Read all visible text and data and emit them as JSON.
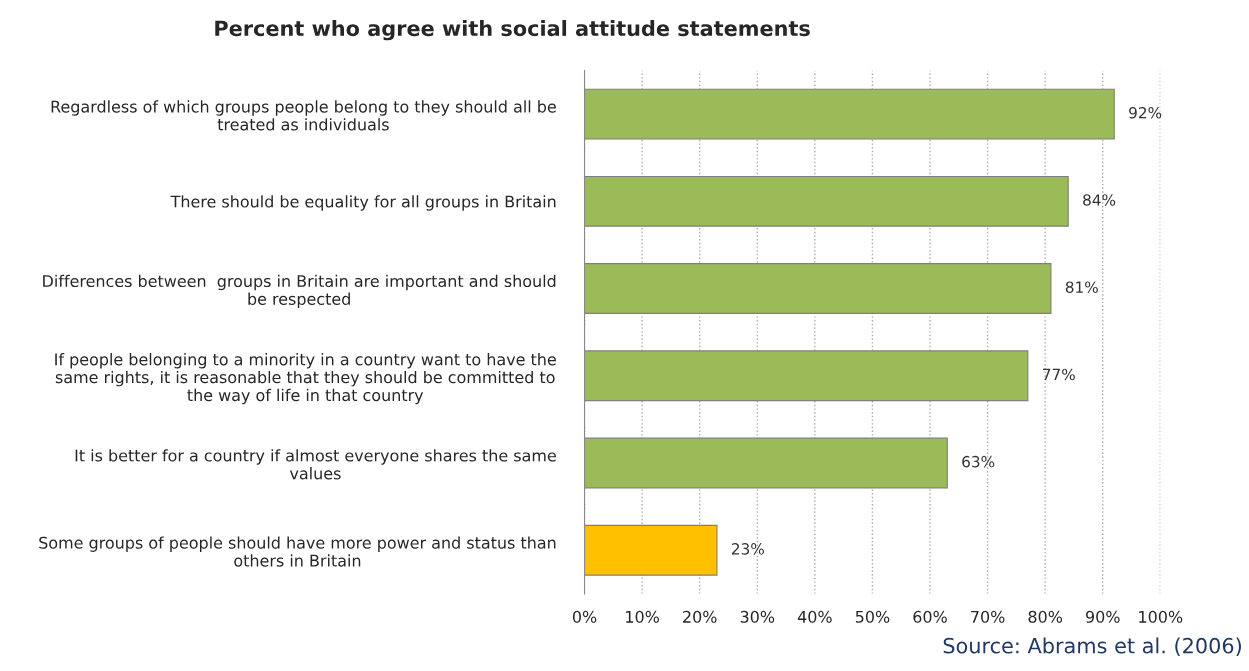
{
  "chart_data": {
    "type": "bar",
    "orientation": "horizontal",
    "title": "Percent who agree with social attitude statements",
    "categories": [
      "Regardless of which groups people belong to they should all be\ntreated as individuals",
      "There should be equality for all groups in Britain",
      "Differences between  groups in Britain are important and should\nbe respected",
      "If people belonging to a minority in a country want to have the\nsame rights, it is reasonable that they should be committed to\nthe way of life in that country",
      "It is better for a country if almost everyone shares the same\nvalues",
      "Some groups of people should have more power and status than\nothers in Britain"
    ],
    "values": [
      92,
      84,
      81,
      77,
      63,
      23
    ],
    "colors": [
      "#9bbb59",
      "#9bbb59",
      "#9bbb59",
      "#9bbb59",
      "#9bbb59",
      "#ffc000"
    ],
    "value_labels": [
      "92%",
      "84%",
      "81%",
      "77%",
      "63%",
      "23%"
    ],
    "xlim": [
      0,
      100
    ],
    "xticks": [
      {
        "value": 0,
        "label": "0%"
      },
      {
        "value": 10,
        "label": "10%"
      },
      {
        "value": 20,
        "label": "20%"
      },
      {
        "value": 30,
        "label": "30%"
      },
      {
        "value": 40,
        "label": "40%"
      },
      {
        "value": 50,
        "label": "50%"
      },
      {
        "value": 60,
        "label": "60%"
      },
      {
        "value": 70,
        "label": "70%"
      },
      {
        "value": 80,
        "label": "80%"
      },
      {
        "value": 90,
        "label": "90%"
      },
      {
        "value": 100,
        "label": "100%"
      }
    ],
    "grid": "x",
    "annotations": [
      "Source: Abrams et al. (2006)"
    ]
  }
}
